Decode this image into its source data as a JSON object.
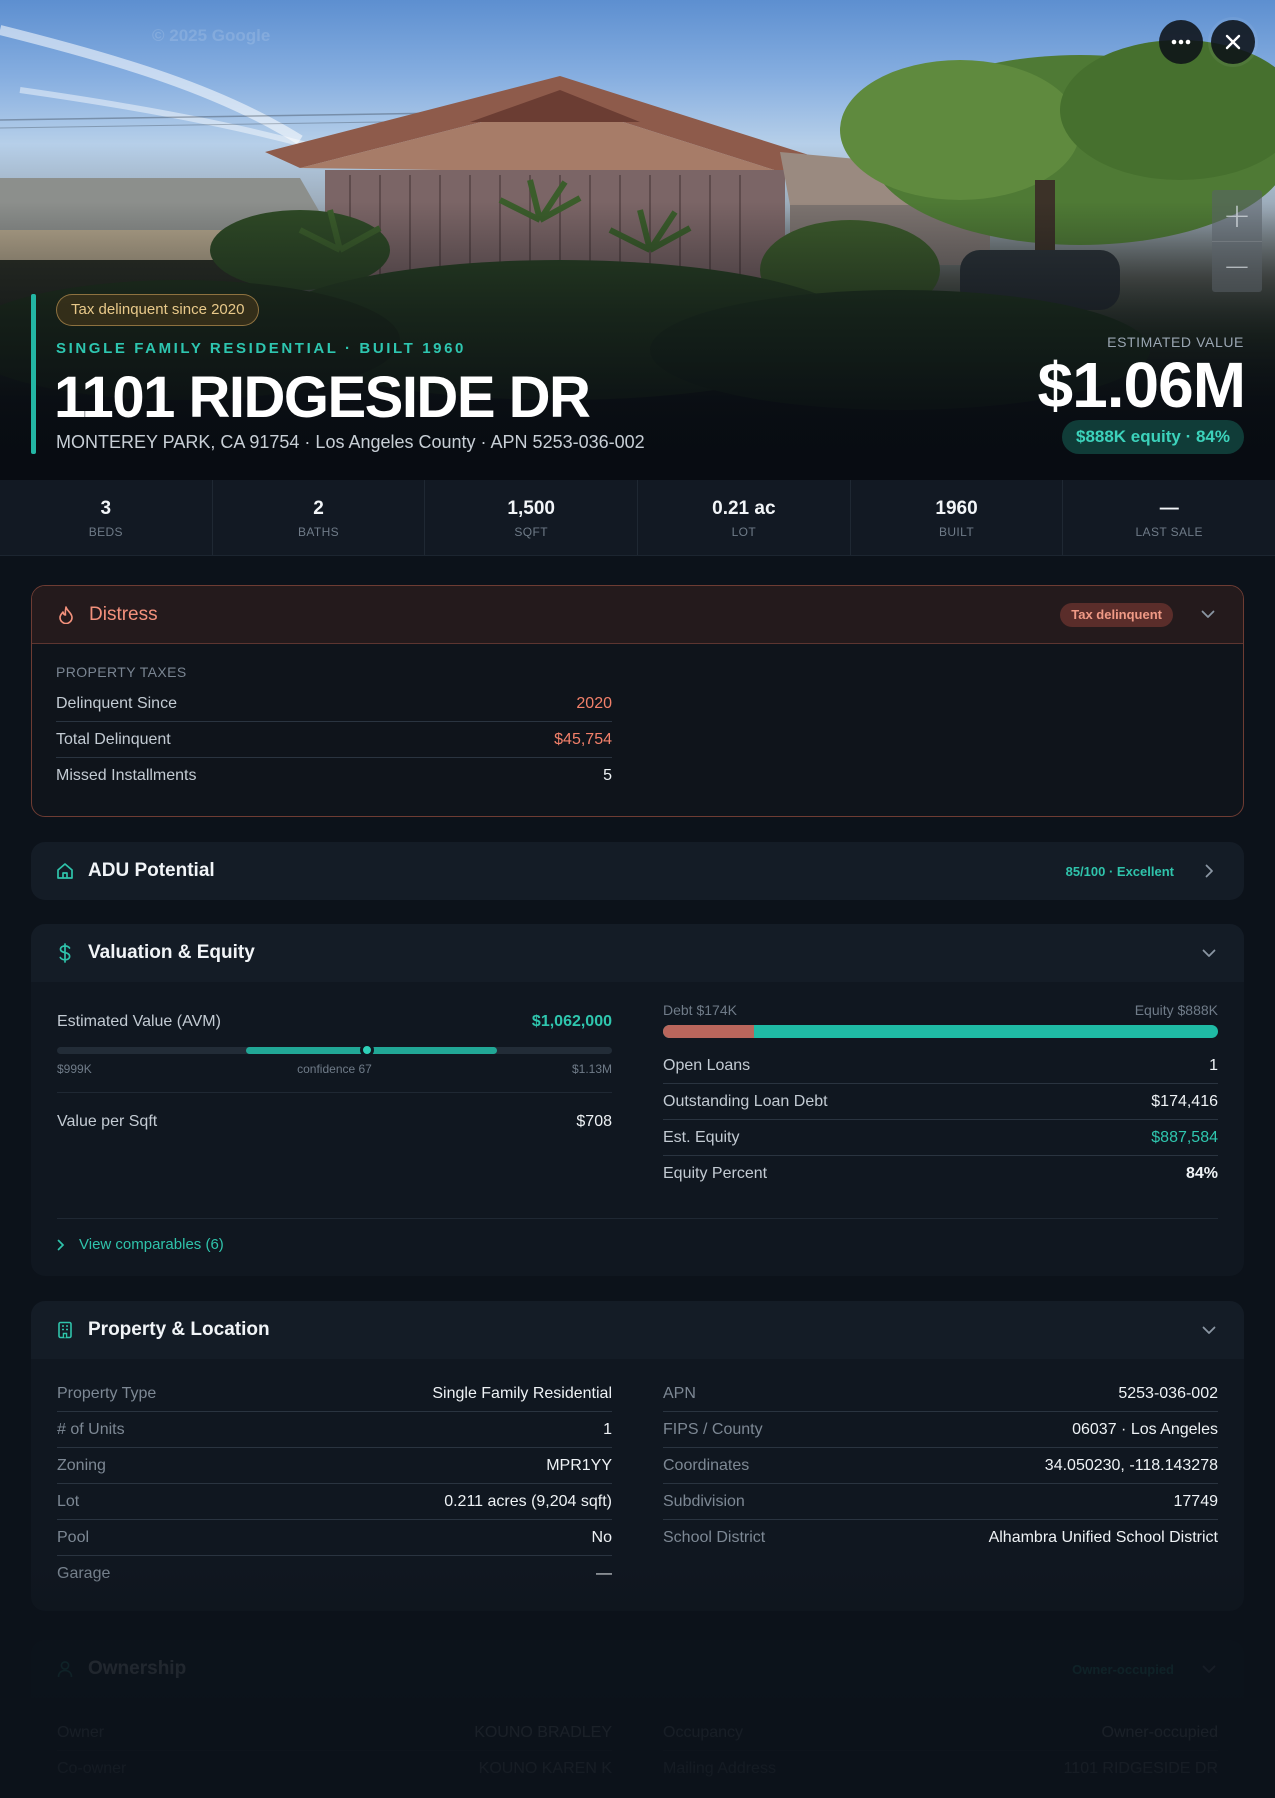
{
  "hero": {
    "watermark": "© 2025 Google",
    "tax_pill": "Tax delinquent since 2020",
    "kicker": "SINGLE FAMILY RESIDENTIAL · BUILT 1960",
    "address": "1101 RIDGESIDE DR",
    "subaddress": "MONTEREY PARK, CA 91754 · Los Angeles County · APN 5253-036-002",
    "est_label": "ESTIMATED VALUE",
    "est_value": "$1.06M",
    "equity_pill": "$888K equity · 84%",
    "zoom_in": "+",
    "zoom_out": "−"
  },
  "stats": [
    {
      "value": "3",
      "label": "BEDS"
    },
    {
      "value": "2",
      "label": "BATHS"
    },
    {
      "value": "1,500",
      "label": "SQFT"
    },
    {
      "value": "0.21 ac",
      "label": "LOT"
    },
    {
      "value": "1960",
      "label": "BUILT"
    },
    {
      "value": "—",
      "label": "LAST SALE"
    }
  ],
  "distress": {
    "title": "Distress",
    "badge": "Tax delinquent",
    "section_label": "PROPERTY TAXES",
    "rows": [
      {
        "k": "Delinquent Since",
        "v": "2020"
      },
      {
        "k": "Total Delinquent",
        "v": "$45,754"
      },
      {
        "k": "Missed Installments",
        "v": "5"
      }
    ]
  },
  "adu": {
    "title": "ADU Potential",
    "badge": "85/100 · Excellent"
  },
  "valuation": {
    "title": "Valuation & Equity",
    "avm_label": "Estimated Value (AVM)",
    "avm_value": "$1,062,000",
    "range_low": "$999K",
    "range_high": "$1.13M",
    "confidence_label": "confidence 67",
    "range": {
      "low": 999000,
      "high": 1130000,
      "value": 1062000,
      "scale_min": 900000,
      "scale_max": 1190000
    },
    "vps_label": "Value per Sqft",
    "vps_value": "$708",
    "debt_label": "Debt $174K",
    "equity_label": "Equity $888K",
    "debt_fraction": 0.164,
    "rows": [
      {
        "k": "Open Loans",
        "v": "1"
      },
      {
        "k": "Outstanding Loan Debt",
        "v": "$174,416"
      },
      {
        "k": "Est. Equity",
        "v": "$887,584"
      },
      {
        "k": "Equity Percent",
        "v": "84%"
      }
    ],
    "comps_link": "View comparables (6)"
  },
  "property": {
    "title": "Property & Location",
    "left_rows": [
      {
        "k": "Property Type",
        "v": "Single Family Residential"
      },
      {
        "k": "# of Units",
        "v": "1"
      },
      {
        "k": "Zoning",
        "v": "MPR1YY"
      },
      {
        "k": "Lot",
        "v": "0.211 acres (9,204 sqft)"
      },
      {
        "k": "Pool",
        "v": "No"
      },
      {
        "k": "Garage",
        "v": "—"
      }
    ],
    "right_rows": [
      {
        "k": "APN",
        "v": "5253-036-002"
      },
      {
        "k": "FIPS / County",
        "v": "06037 · Los Angeles"
      },
      {
        "k": "Coordinates",
        "v": "34.050230, -118.143278"
      },
      {
        "k": "Subdivision",
        "v": "17749"
      },
      {
        "k": "School District",
        "v": "Alhambra Unified School District"
      }
    ]
  },
  "ownership": {
    "title": "Ownership",
    "badge": "Owner-occupied",
    "left_rows": [
      {
        "k": "Owner",
        "v": "KOUNO BRADLEY"
      },
      {
        "k": "Co-owner",
        "v": "KOUNO KAREN K"
      }
    ],
    "right_rows": [
      {
        "k": "Occupancy",
        "v": "Owner-occupied"
      },
      {
        "k": "Mailing Address",
        "v": "1101 RIDGESIDE DR"
      }
    ]
  },
  "colors": {
    "accent": "#23b6a4",
    "danger": "#f2806a",
    "warning": "#e8c98a",
    "card": "#101720"
  },
  "icons": [
    "more-icon",
    "close-icon",
    "flame-icon",
    "home-icon",
    "dollar-icon",
    "building-icon",
    "user-icon",
    "chevron-down-icon",
    "chevron-right-icon"
  ]
}
